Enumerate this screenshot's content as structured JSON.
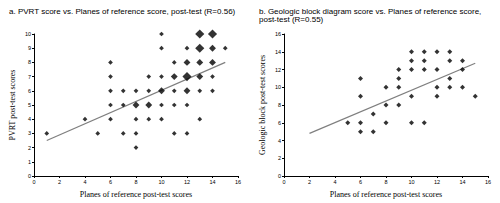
{
  "chart_data": [
    {
      "type": "scatter",
      "title": "a. PVRT score vs. Planes of reference score, post-test (R=0.56)",
      "x_label": "Planes of reference post-test scores",
      "y_label": "PVRT post-test scores",
      "xlim": [
        0,
        16
      ],
      "xticks": [
        0,
        2,
        4,
        6,
        8,
        10,
        12,
        14,
        16
      ],
      "ylim": [
        0,
        10
      ],
      "yticks": [
        0,
        1,
        2,
        3,
        4,
        5,
        6,
        7,
        8,
        9,
        10
      ],
      "grid": false,
      "series": [
        {
          "type": "scatter",
          "marker": "diamond",
          "color": "#000000",
          "x": [
            1,
            4,
            5,
            6,
            6,
            6,
            6,
            6,
            7,
            7,
            7,
            8,
            8,
            8,
            8,
            8,
            9,
            9,
            9,
            9,
            10,
            10,
            10,
            10,
            10,
            10,
            11,
            11,
            11,
            11,
            11,
            12,
            12,
            12,
            12,
            12,
            12,
            13,
            13,
            13,
            13,
            13,
            13,
            14,
            14,
            14,
            14,
            14,
            15
          ],
          "values": [
            3,
            4,
            3,
            8,
            7,
            6,
            5,
            4,
            6,
            5,
            3,
            6,
            5,
            4,
            3,
            2,
            5,
            4,
            6,
            7,
            6,
            5,
            4,
            7,
            9,
            10,
            7,
            6,
            5,
            3,
            8,
            7,
            6,
            8,
            5,
            3,
            9,
            8,
            9,
            10,
            7,
            6,
            4,
            10,
            9,
            8,
            7,
            6,
            9
          ],
          "sizes": [
            1,
            1,
            1,
            1,
            1,
            1,
            1,
            1,
            1,
            1,
            1,
            1,
            2,
            1,
            1,
            1,
            2,
            1,
            1,
            1,
            2,
            1,
            1,
            1,
            1,
            1,
            2,
            1,
            1,
            1,
            1,
            3,
            2,
            2,
            1,
            1,
            1,
            2,
            3,
            3,
            2,
            1,
            1,
            3,
            2,
            2,
            1,
            1,
            1
          ]
        },
        {
          "type": "line",
          "line_style": "solid",
          "color": "#7f7f7f",
          "x": [
            1,
            15
          ],
          "values": [
            2.5,
            8
          ]
        }
      ]
    },
    {
      "type": "scatter",
      "title": "b. Geologic block diagram score vs. Planes of reference score, post-test (R=0.55)",
      "x_label": "Planes of reference post-test scores",
      "y_label": "Geologic block post-test scores",
      "xlim": [
        0,
        16
      ],
      "xticks": [
        0,
        2,
        4,
        6,
        8,
        10,
        12,
        14,
        16
      ],
      "ylim": [
        0,
        16
      ],
      "yticks": [
        0,
        2,
        4,
        6,
        8,
        10,
        12,
        14,
        16
      ],
      "grid": false,
      "series": [
        {
          "type": "scatter",
          "marker": "diamond",
          "color": "#000000",
          "x": [
            5,
            6,
            6,
            6,
            6,
            7,
            7,
            8,
            8,
            8,
            9,
            9,
            9,
            9,
            10,
            10,
            10,
            10,
            10,
            11,
            11,
            11,
            11,
            12,
            12,
            12,
            12,
            13,
            13,
            13,
            13,
            14,
            14,
            14,
            15
          ],
          "values": [
            6,
            6,
            9,
            11,
            5,
            5,
            7,
            6,
            8,
            10,
            8,
            10,
            11,
            12,
            6,
            9,
            12,
            13,
            14,
            6,
            12,
            13,
            14,
            9,
            10,
            12,
            14,
            10,
            11,
            13,
            14,
            10,
            13,
            12,
            9
          ]
        },
        {
          "type": "line",
          "line_style": "solid",
          "color": "#7f7f7f",
          "x": [
            2,
            15
          ],
          "values": [
            4.8,
            12.7
          ]
        }
      ]
    }
  ]
}
